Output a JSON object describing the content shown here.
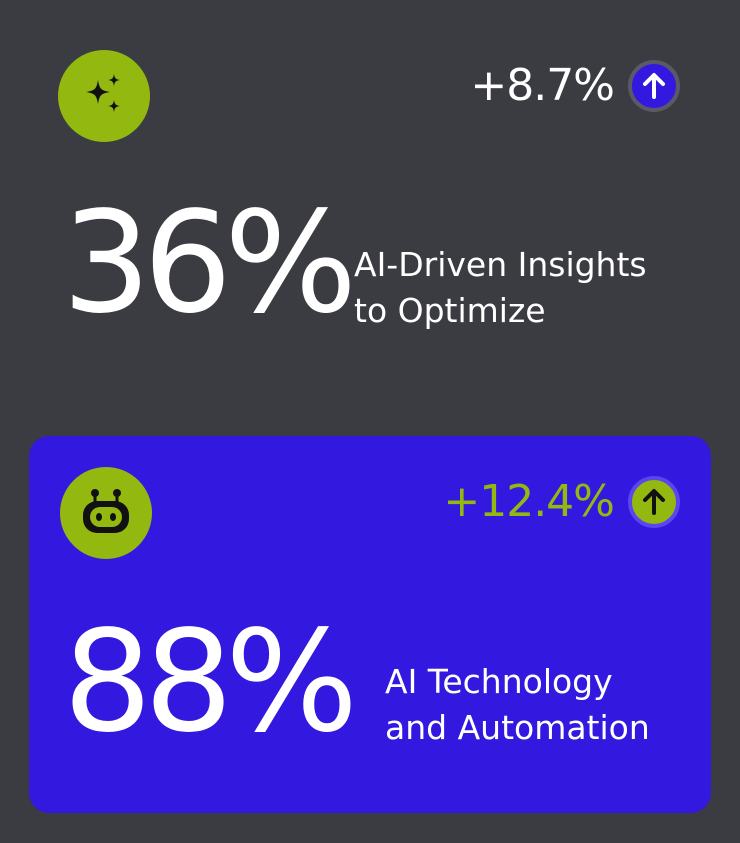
{
  "cards": [
    {
      "icon": "sparkles-icon",
      "change": "+8.7%",
      "trend_icon": "arrow-up-icon",
      "value": "36%",
      "description_line1": "AI-Driven Insights",
      "description_line2": "to Optimize"
    },
    {
      "icon": "robot-icon",
      "change": "+12.4%",
      "trend_icon": "arrow-up-icon",
      "value": "88%",
      "description_line1": "AI Technology",
      "description_line2": "and Automation"
    }
  ],
  "colors": {
    "background": "#3b3b42",
    "accent_green": "#93b80f",
    "accent_blue": "#3318e0",
    "text": "#ffffff"
  }
}
